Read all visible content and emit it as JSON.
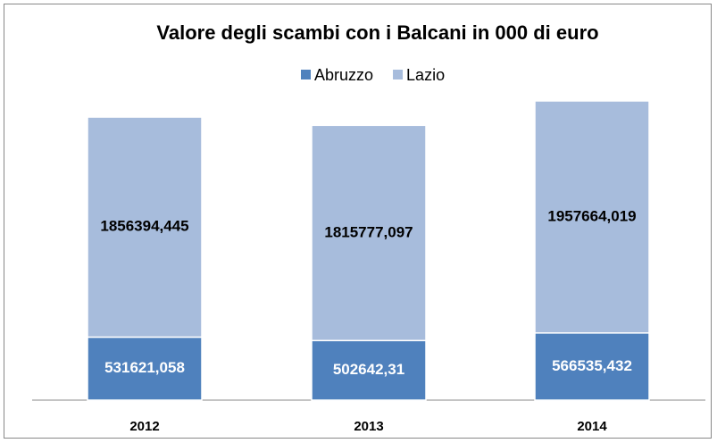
{
  "chart_data": {
    "type": "bar",
    "stacked": true,
    "title": "Valore degli scambi con i Balcani in 000 di euro",
    "categories": [
      "2012",
      "2013",
      "2014"
    ],
    "series": [
      {
        "name": "Abruzzo",
        "color": "#4f81bd",
        "values": [
          531621.058,
          502642.31,
          566535.432
        ],
        "value_labels": [
          "531621,058",
          "502642,31",
          "566535,432"
        ]
      },
      {
        "name": "Lazio",
        "color": "#a7bcdc",
        "values": [
          1856394.445,
          1815777.097,
          1957664.019
        ],
        "value_labels": [
          "1856394,445",
          "1815777,097",
          "1957664,019"
        ]
      }
    ]
  }
}
